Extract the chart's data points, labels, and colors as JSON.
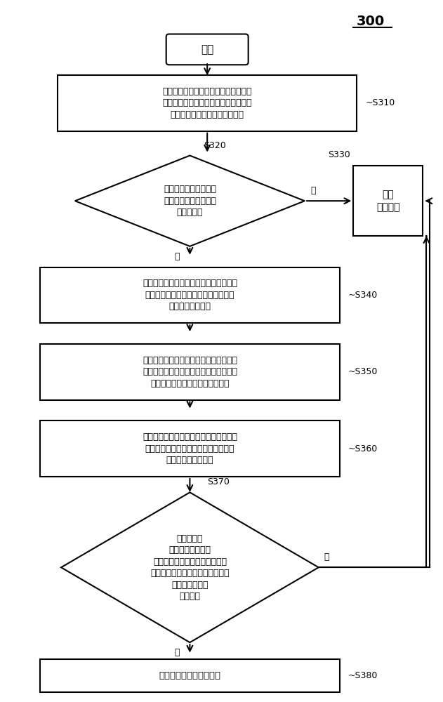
{
  "title": "300",
  "bg_color": "#ffffff",
  "line_color": "#000000",
  "text_color": "#000000",
  "start_text": "开始",
  "s310_text": "根据网表文件、第一时序约束文件以及\n寄生参数文件进行静态时序分析，以产\n生第一标准延迟文件和日志文件",
  "s310_label": "S310",
  "s320_text": "透过第一脚本，根据日\n志文件判断是否发生设\n计规则违例",
  "s320_label": "S320",
  "s330_text": "进行\n时序签核",
  "s330_label": "S330",
  "s340_text": "透过上述第一脚本，产生违例元件列表，\n以及对应设计规则允许的最大设定值的\n第二时序约束文件",
  "s340_label": "S340",
  "s350_text": "根据第二时序约束文件、网表文件、第一\n时序约束文件以及寄生参数文件进行静态\n时序分析以产生第二标准延迟文件",
  "s350_label": "S350",
  "s360_text": "透过第二脚本，根据第一标准延迟文件、\n第二标准延迟文件以及违例元件列表产\n生第三标准延迟文件",
  "s360_label": "S360",
  "s370_text": "根据第一标\n准延迟文件、第三\n标准延迟文件、网表文件、第一\n时序约束文件进行静态时序分析，\n以判断是否产生\n时序违例",
  "s370_label": "S370",
  "s380_text": "修正发生违例的时序路径",
  "s380_label": "S380",
  "yes_text": "是",
  "no_text": "否"
}
